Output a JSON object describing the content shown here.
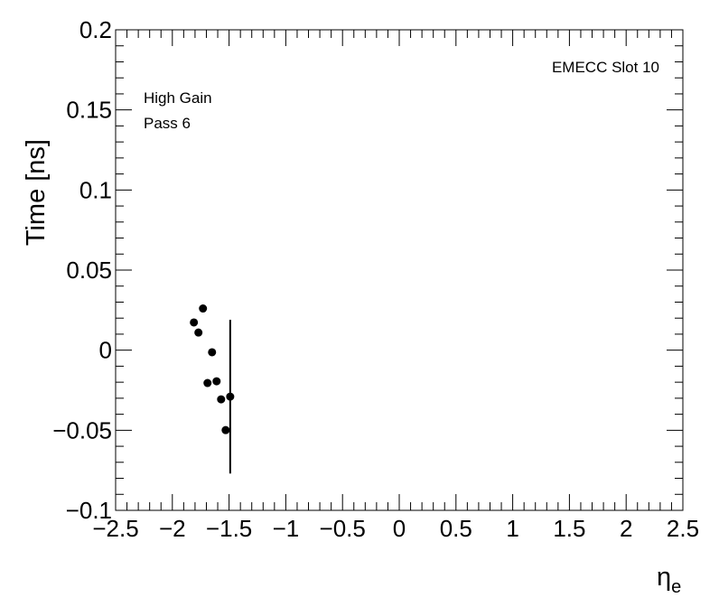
{
  "chart_data": {
    "type": "scatter",
    "x_label": {
      "symbol": "η",
      "subscript": "e"
    },
    "y_label": "Time [ns]",
    "annotations": [
      "EMECC Slot 10",
      "High Gain",
      "Pass 6"
    ],
    "series": [
      {
        "color": "#000000",
        "x": [
          -1.81,
          -1.77,
          -1.73,
          -1.69,
          -1.65,
          -1.61,
          -1.57,
          -1.53,
          -1.49
        ],
        "values": [
          0.0173,
          0.011,
          0.026,
          -0.0205,
          -0.0013,
          -0.0194,
          -0.0307,
          -0.0499,
          -0.029
        ],
        "errors": [
          0,
          0,
          0,
          0,
          0,
          0,
          0,
          0,
          0.048
        ]
      }
    ],
    "xlim": [
      -2.5,
      2.5
    ],
    "ylim": [
      -0.1,
      0.2
    ],
    "xticks": [
      {
        "value": -2.5,
        "label": "−2.5"
      },
      {
        "value": -2,
        "label": "−2"
      },
      {
        "value": -1.5,
        "label": "−1.5"
      },
      {
        "value": -1,
        "label": "−1"
      },
      {
        "value": -0.5,
        "label": "−0.5"
      },
      0,
      0.5,
      1,
      1.5,
      2,
      2.5
    ],
    "yticks": [
      {
        "value": -0.1,
        "label": "−0.1"
      },
      {
        "value": -0.05,
        "label": "−0.05"
      },
      0,
      0.05,
      0.1,
      0.15,
      0.2
    ]
  }
}
